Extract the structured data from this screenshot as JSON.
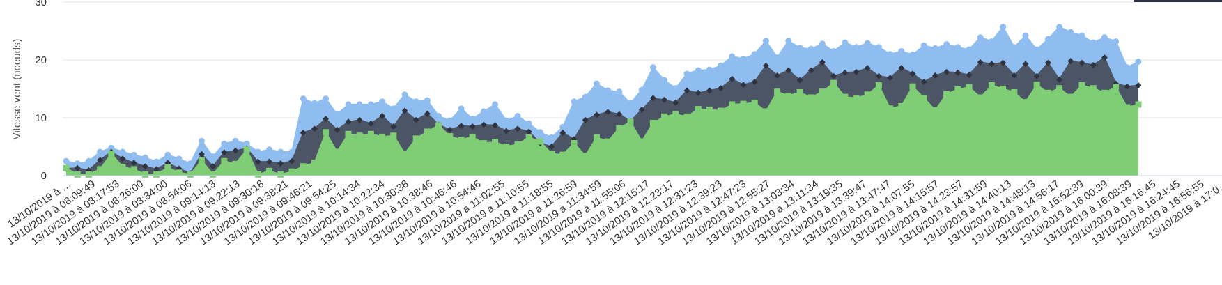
{
  "chart_data": {
    "type": "area",
    "ylabel": "Vitesse vent (noeuds)",
    "ylim": [
      0,
      30
    ],
    "yticks": [
      0,
      10,
      20,
      30
    ],
    "grid": true,
    "x_tick_labels": [
      "13/10/2019 à …",
      "13/10/2019 à 08:09:49",
      "13/10/2019 à 08:17:53",
      "13/10/2019 à 08:26:00",
      "13/10/2019 à 08:34:00",
      "13/10/2019 à 08:54:06",
      "13/10/2019 à 09:14:13",
      "13/10/2019 à 09:22:13",
      "13/10/2019 à 09:30:18",
      "13/10/2019 à 09:38:21",
      "13/10/2019 à 09:46:21",
      "13/10/2019 à 09:54:25",
      "13/10/2019 à 10:14:34",
      "13/10/2019 à 10:22:34",
      "13/10/2019 à 10:30:38",
      "13/10/2019 à 10:38:46",
      "13/10/2019 à 10:46:46",
      "13/10/2019 à 10:54:46",
      "13/10/2019 à 11:02:55",
      "13/10/2019 à 11:10:55",
      "13/10/2019 à 11:18:55",
      "13/10/2019 à 11:26:59",
      "13/10/2019 à 11:34:59",
      "13/10/2019 à 11:55:06",
      "13/10/2019 à 12:15:17",
      "13/10/2019 à 12:23:17",
      "13/10/2019 à 12:31:23",
      "13/10/2019 à 12:39:23",
      "13/10/2019 à 12:47:23",
      "13/10/2019 à 12:55:27",
      "13/10/2019 à 13:03:34",
      "13/10/2019 à 13:11:34",
      "13/10/2019 à 13:19:35",
      "13/10/2019 à 13:39:47",
      "13/10/2019 à 13:47:47",
      "13/10/2019 à 14:07:55",
      "13/10/2019 à 14:15:57",
      "13/10/2019 à 14:23:57",
      "13/10/2019 à 14:31:59",
      "13/10/2019 à 14:40:13",
      "13/10/2019 à 14:48:13",
      "13/10/2019 à 14:56:17",
      "13/10/2019 à 15:52:39",
      "13/10/2019 à 16:00:39",
      "13/10/2019 à 16:08:39",
      "13/10/2019 à 16:16:45",
      "13/10/2019 à 16:24:45",
      "13/10/2019 à 16:56:55",
      "13/10/2019 à 17:0…"
    ],
    "series": [
      {
        "color": "#90bdf0",
        "marker": "circle",
        "values": [
          2.5,
          2.1,
          2.5,
          4.1,
          4.8,
          4.1,
          3.6,
          3.1,
          2.4,
          3.6,
          2.9,
          2.1,
          6.0,
          3.3,
          5.5,
          6.0,
          5.5,
          4.1,
          4.5,
          4.1,
          4.1,
          13.3,
          12.5,
          13.3,
          10.6,
          12.3,
          12.3,
          12.3,
          12.8,
          11.6,
          14.0,
          12.8,
          13.0,
          10.3,
          9.5,
          11.6,
          9.8,
          11.1,
          12.3,
          9.5,
          10.3,
          9.0,
          7.5,
          6.6,
          8.4,
          12.8,
          13.6,
          15.9,
          14.7,
          14.5,
          12.5,
          14.8,
          18.7,
          16.5,
          15.1,
          17.6,
          18.2,
          18.3,
          19.0,
          20.6,
          20.2,
          21.0,
          23.3,
          20.4,
          23.3,
          22.1,
          21.9,
          22.8,
          21.5,
          23.0,
          22.2,
          22.9,
          22.2,
          21.0,
          21.5,
          20.9,
          22.5,
          22.0,
          22.7,
          22.2,
          21.8,
          23.9,
          23.2,
          25.7,
          22.2,
          24.2,
          21.8,
          23.6,
          25.7,
          24.8,
          24.2,
          23.0,
          23.9,
          23.2,
          18.7,
          19.7
        ]
      },
      {
        "color": "#4c5566",
        "marker": "diamond",
        "values": [
          1.2,
          1.3,
          0.9,
          2.7,
          4.1,
          2.9,
          2.2,
          1.6,
          1.1,
          2.2,
          1.2,
          0.4,
          3.7,
          1.6,
          4.0,
          4.3,
          4.7,
          2.4,
          2.4,
          2.1,
          2.5,
          7.4,
          8.1,
          9.8,
          7.9,
          9.3,
          9.6,
          9.0,
          10.3,
          8.5,
          11.2,
          9.6,
          10.7,
          8.8,
          7.9,
          8.6,
          8.5,
          8.8,
          8.7,
          7.7,
          8.1,
          7.6,
          5.6,
          5.0,
          7.4,
          6.3,
          9.6,
          10.5,
          11.0,
          10.6,
          9.4,
          11.4,
          13.4,
          13.1,
          12.6,
          14.7,
          14.3,
          14.7,
          15.1,
          16.7,
          15.7,
          16.2,
          19.0,
          17.3,
          18.2,
          16.5,
          18.2,
          19.6,
          17.2,
          17.8,
          17.9,
          18.6,
          17.2,
          16.9,
          18.6,
          17.6,
          16.2,
          17.3,
          17.9,
          17.8,
          17.4,
          19.6,
          19.3,
          19.5,
          17.3,
          19.3,
          17.2,
          19.5,
          16.6,
          19.8,
          19.5,
          19.1,
          20.4,
          15.9,
          15.4,
          15.6
        ]
      },
      {
        "color": "#7fcd74",
        "marker": "square",
        "values": [
          1.3,
          0.2,
          0.2,
          1.1,
          3.8,
          1.5,
          1.1,
          0.2,
          0.2,
          1.4,
          0.5,
          0.2,
          2.6,
          0.2,
          2.5,
          2.0,
          4.5,
          0.2,
          0.8,
          0.2,
          0.7,
          1.6,
          2.2,
          7.5,
          4.1,
          7.2,
          6.9,
          7.2,
          6.7,
          6.9,
          3.8,
          6.4,
          7.6,
          8.7,
          6.8,
          6.2,
          6.7,
          5.6,
          5.8,
          5.0,
          5.4,
          6.6,
          5.9,
          3.8,
          3.6,
          5.6,
          3.4,
          6.6,
          5.9,
          8.2,
          9.3,
          5.9,
          9.1,
          10.2,
          10.6,
          10.2,
          11.5,
          11.4,
          11.2,
          12.3,
          12.4,
          12.6,
          11.1,
          14.5,
          13.8,
          14.4,
          13.5,
          14.5,
          16.0,
          13.6,
          13.4,
          14.0,
          15.6,
          11.6,
          12.0,
          15.4,
          13.4,
          11.3,
          14.1,
          14.9,
          15.3,
          13.5,
          15.6,
          15.0,
          14.4,
          12.7,
          15.7,
          14.3,
          15.1,
          13.6,
          15.6,
          15.1,
          14.3,
          15.3,
          11.8,
          12.3
        ]
      }
    ]
  }
}
